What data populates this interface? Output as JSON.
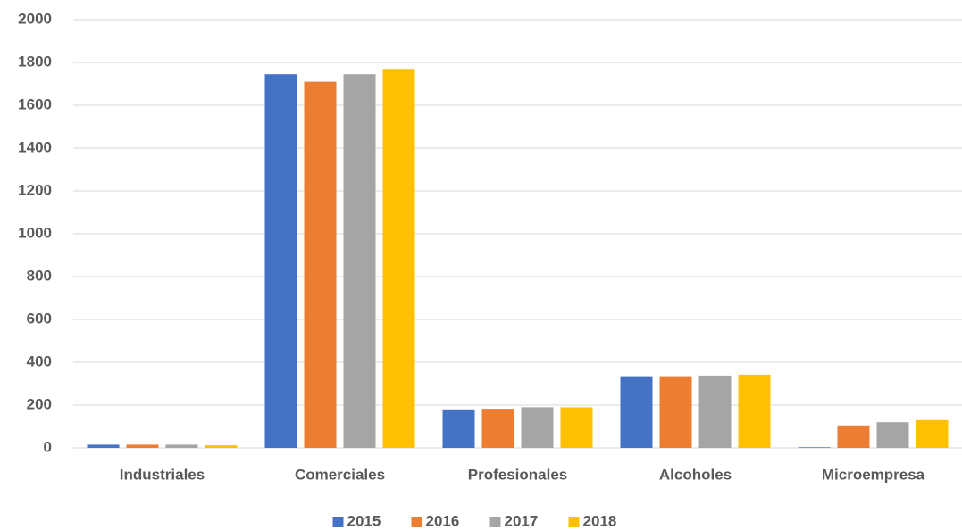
{
  "chart_data": {
    "type": "bar",
    "categories": [
      "Industriales",
      "Comerciales",
      "Profesionales",
      "Alcoholes",
      "Microempresa"
    ],
    "series": [
      {
        "name": "2015",
        "color": "#4472c4",
        "values": [
          15,
          1745,
          180,
          335,
          3
        ]
      },
      {
        "name": "2016",
        "color": "#ed7d31",
        "values": [
          15,
          1710,
          183,
          335,
          105
        ]
      },
      {
        "name": "2017",
        "color": "#a5a5a5",
        "values": [
          15,
          1745,
          190,
          338,
          120
        ]
      },
      {
        "name": "2018",
        "color": "#ffc000",
        "values": [
          12,
          1770,
          190,
          342,
          130
        ]
      }
    ],
    "ylim": [
      0,
      2000
    ],
    "yticks": [
      0,
      200,
      400,
      600,
      800,
      1000,
      1200,
      1400,
      1600,
      1800,
      2000
    ],
    "grid": true,
    "legend": "bottom"
  }
}
